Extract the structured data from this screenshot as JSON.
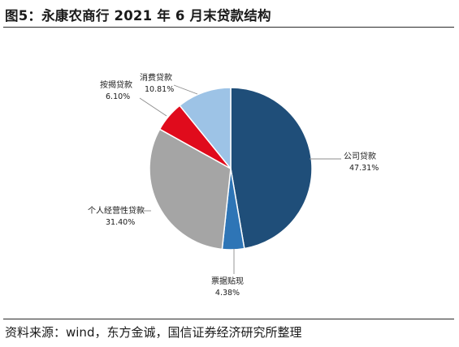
{
  "figure": {
    "title": "图5：永康农商行 2021 年 6 月末贷款结构",
    "source": "资料来源：wind，东方金诚，国信证券经济研究所整理"
  },
  "chart_data": {
    "type": "pie",
    "legend": "none",
    "slices": [
      {
        "name": "公司贷款",
        "value": 47.31,
        "label": "47.31%",
        "color": "#1f4e79"
      },
      {
        "name": "票据贴现",
        "value": 4.38,
        "label": "4.38%",
        "color": "#2e75b6"
      },
      {
        "name": "个人经营性贷款",
        "value": 31.4,
        "label": "31.40%",
        "color": "#a5a5a5"
      },
      {
        "name": "按揭贷款",
        "value": 6.1,
        "label": "6.10%",
        "color": "#e00b1c"
      },
      {
        "name": "消费贷款",
        "value": 10.81,
        "label": "10.81%",
        "color": "#9dc3e6"
      }
    ]
  }
}
